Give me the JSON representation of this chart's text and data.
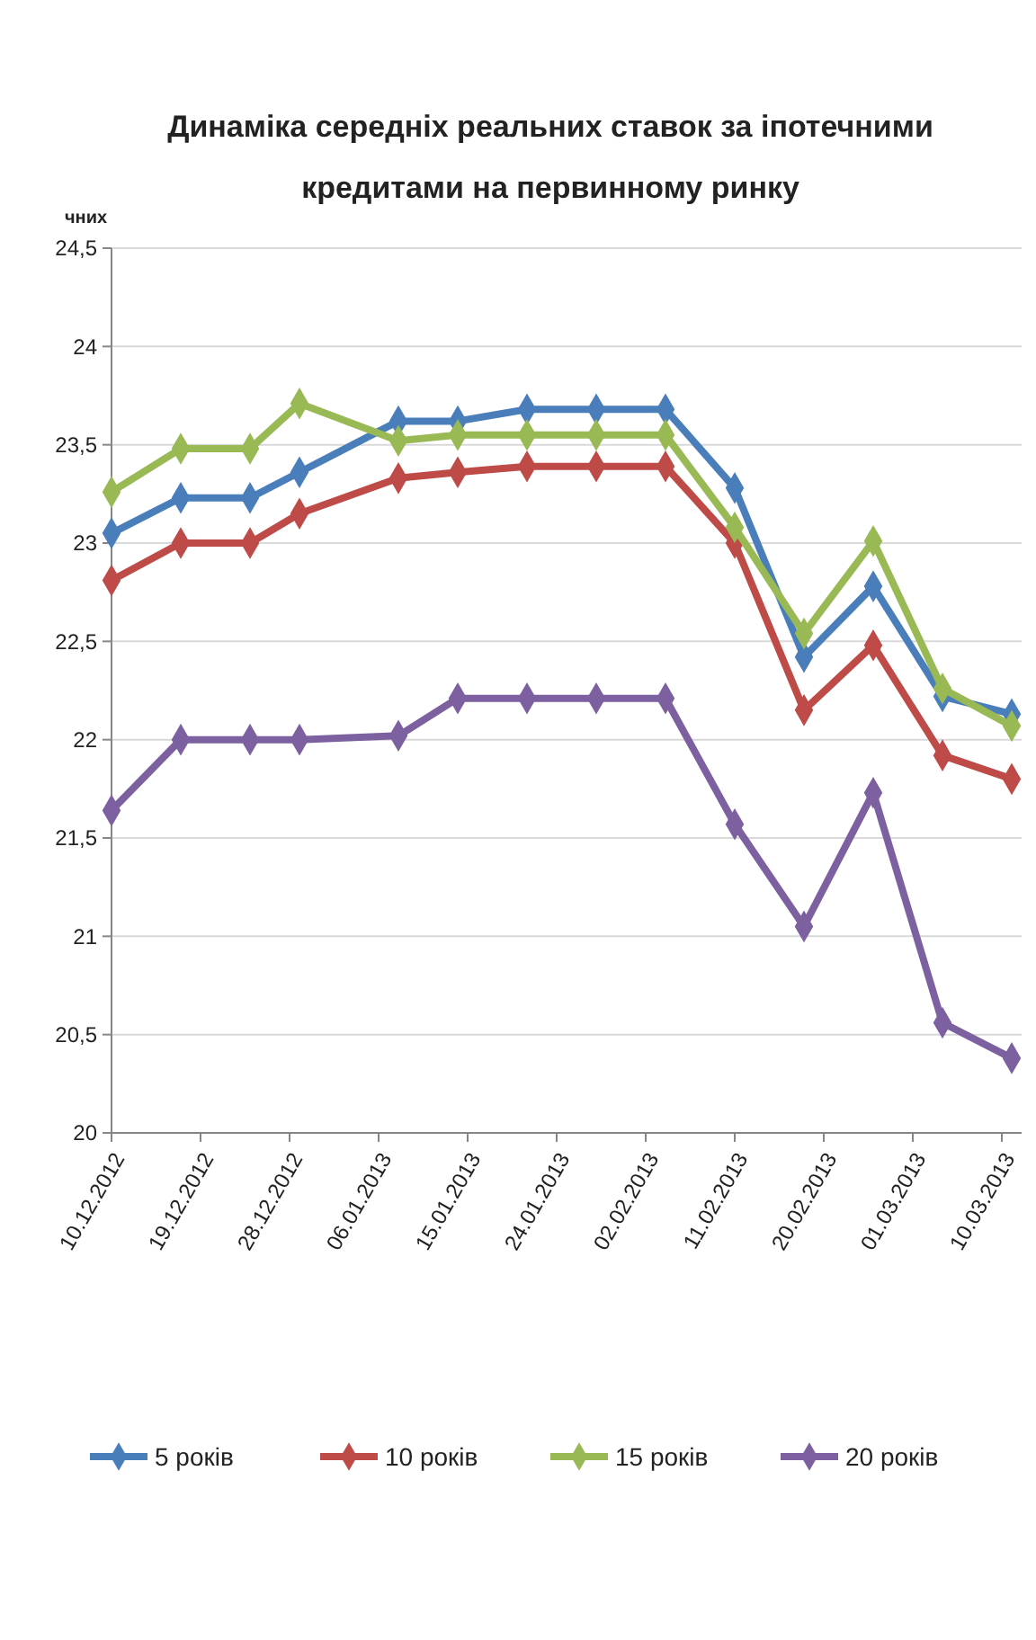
{
  "chart_data": {
    "type": "line",
    "title": "Динаміка середніх реальних ставок за іпотечними кредитами на первинному ринку",
    "ylabel": "чних",
    "x": [
      "2012-12-10",
      "2012-12-17",
      "2012-12-24",
      "2012-12-29",
      "2013-01-08",
      "2013-01-14",
      "2013-01-21",
      "2013-01-28",
      "2013-02-04",
      "2013-02-11",
      "2013-02-18",
      "2013-02-25",
      "2013-03-04",
      "2013-03-11"
    ],
    "series": [
      {
        "name": "5 років",
        "color": "#4a7ebb",
        "values": [
          23.05,
          23.23,
          23.23,
          23.36,
          23.62,
          23.62,
          23.68,
          23.68,
          23.68,
          23.28,
          22.42,
          22.78,
          22.22,
          22.13
        ]
      },
      {
        "name": "10 років",
        "color": "#be4b48",
        "values": [
          22.81,
          23.0,
          23.0,
          23.15,
          23.33,
          23.36,
          23.39,
          23.39,
          23.39,
          23.0,
          22.15,
          22.48,
          21.92,
          21.8
        ]
      },
      {
        "name": "15 років",
        "color": "#98b954",
        "values": [
          23.26,
          23.48,
          23.48,
          23.71,
          23.52,
          23.55,
          23.55,
          23.55,
          23.55,
          23.08,
          22.54,
          23.01,
          22.26,
          22.07
        ]
      },
      {
        "name": "20 років",
        "color": "#7d60a0",
        "values": [
          21.64,
          22.0,
          22.0,
          22.0,
          22.02,
          22.21,
          22.21,
          22.21,
          22.21,
          21.57,
          21.05,
          21.73,
          20.56,
          20.38
        ]
      }
    ],
    "xlim": [
      "2012-12-10",
      "2013-03-12"
    ],
    "xticks": [
      {
        "value": "2012-12-10",
        "label": "10.12.2012"
      },
      {
        "value": "2012-12-19",
        "label": "19.12.2012"
      },
      {
        "value": "2012-12-28",
        "label": "28.12.2012"
      },
      {
        "value": "2013-01-06",
        "label": "06.01.2013"
      },
      {
        "value": "2013-01-15",
        "label": "15.01.2013"
      },
      {
        "value": "2013-01-24",
        "label": "24.01.2013"
      },
      {
        "value": "2013-02-02",
        "label": "02.02.2013"
      },
      {
        "value": "2013-02-11",
        "label": "11.02.2013"
      },
      {
        "value": "2013-02-20",
        "label": "20.02.2013"
      },
      {
        "value": "2013-03-01",
        "label": "01.03.2013"
      },
      {
        "value": "2013-03-10",
        "label": "10.03.2013"
      }
    ],
    "ylim": [
      20,
      24.5
    ],
    "yticks": [
      {
        "value": 20,
        "label": "20"
      },
      {
        "value": 20.5,
        "label": "20,5"
      },
      {
        "value": 21,
        "label": "21"
      },
      {
        "value": 21.5,
        "label": "21,5"
      },
      {
        "value": 22,
        "label": "22"
      },
      {
        "value": 22.5,
        "label": "22,5"
      },
      {
        "value": 23,
        "label": "23"
      },
      {
        "value": 23.5,
        "label": "23,5"
      },
      {
        "value": 24,
        "label": "24"
      },
      {
        "value": 24.5,
        "label": "24,5"
      }
    ],
    "grid": "y",
    "legend": "bottom",
    "marker": "diamond",
    "line_style": "solid"
  }
}
